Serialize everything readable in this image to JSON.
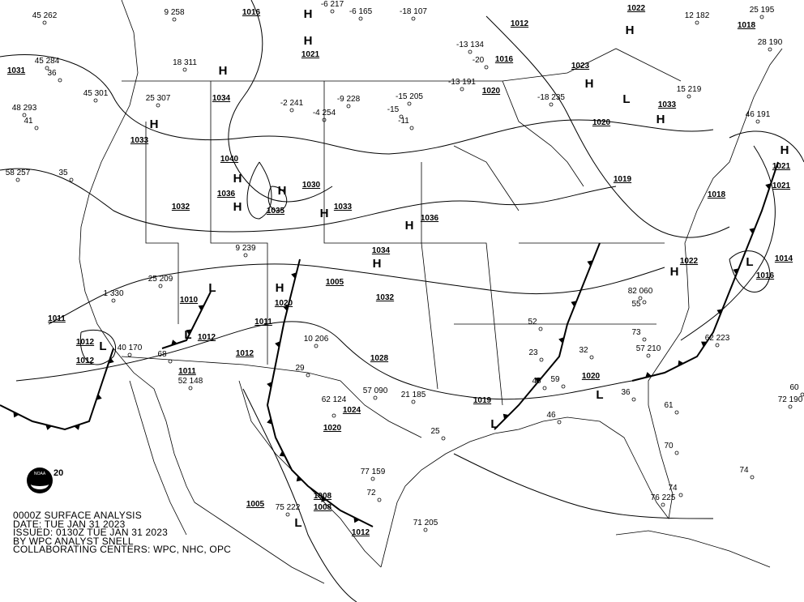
{
  "title_block": {
    "line1": "0000Z SURFACE ANALYSIS",
    "line2": "DATE: TUE JAN 31 2023",
    "line3": "ISSUED: 0130Z TUE JAN 31 2023",
    "line4": "BY WPC ANALYST SNELL",
    "line5": "COLLABORATING CENTERS: WPC, NHC, OPC"
  },
  "logo": {
    "name": "NOAA",
    "text": "20"
  },
  "colors": {
    "ink": "#000000",
    "background": "#ffffff"
  },
  "pressure_centers": [
    {
      "type": "H",
      "value": "1016"
    },
    {
      "type": "H",
      "value": "1021"
    },
    {
      "type": "H",
      "value": "1022"
    },
    {
      "type": "H",
      "value": "1023"
    },
    {
      "type": "H",
      "value": "1033"
    },
    {
      "type": "H",
      "value": "1040"
    },
    {
      "type": "H",
      "value": "1036"
    },
    {
      "type": "H",
      "value": "1035"
    },
    {
      "type": "H",
      "value": "1030"
    },
    {
      "type": "H",
      "value": "1036"
    },
    {
      "type": "H",
      "value": "1034"
    },
    {
      "type": "H",
      "value": "1020"
    },
    {
      "type": "H",
      "value": "1033"
    },
    {
      "type": "H",
      "value": "1022"
    },
    {
      "type": "H",
      "value": "1021"
    },
    {
      "type": "H",
      "value": "1034"
    },
    {
      "type": "L",
      "value": "1020"
    },
    {
      "type": "L",
      "value": "1010"
    },
    {
      "type": "L",
      "value": "1012"
    },
    {
      "type": "L",
      "value": "1012"
    },
    {
      "type": "L",
      "value": "1016"
    },
    {
      "type": "L",
      "value": "1020"
    },
    {
      "type": "L",
      "value": "1019"
    },
    {
      "type": "L",
      "value": "1008"
    }
  ],
  "isobar_labels": [
    "1031",
    "1012",
    "1016",
    "1020",
    "1018",
    "1019",
    "1021",
    "1014",
    "1005",
    "1011",
    "1032",
    "1033",
    "1012",
    "1011",
    "1018",
    "1012",
    "1024",
    "1028",
    "1020",
    "1005",
    "1012",
    "1008",
    "1011",
    "1032"
  ],
  "station_values": [
    "45 262",
    "45 284",
    "45 301",
    "48 293",
    "58 257",
    "36",
    "41",
    "35",
    "9 258",
    "18 311",
    "25 307",
    "15 219",
    "25 195",
    "28 190",
    "46 191",
    "12 182",
    "-6 217",
    "-6 165",
    "-18 107",
    "-13 134",
    "-20",
    "-13 191",
    "-18 235",
    "-15 205",
    "-9 228",
    "-11",
    "-15",
    "-4 254",
    "-2 241",
    "10 206",
    "9 239",
    "25 209",
    "1 330",
    "40 170",
    "52 148",
    "29",
    "62 124",
    "57 090",
    "21 185",
    "25",
    "23",
    "32",
    "36",
    "45",
    "59",
    "60",
    "61",
    "70",
    "74",
    "76 225",
    "75 222",
    "72",
    "77 159",
    "71 205",
    "82 060",
    "73",
    "46",
    "52",
    "55",
    "57 210",
    "62 223",
    "72 190",
    "74",
    "68"
  ]
}
